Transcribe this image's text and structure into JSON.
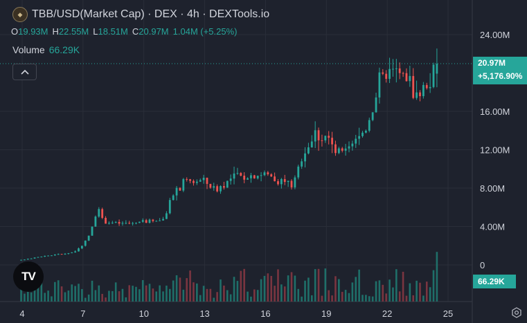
{
  "header": {
    "title": "TBB/USD(Market Cap) · DEX · 4h · DEXTools.io",
    "logo_icon": "tbb-token-icon"
  },
  "ohlc": {
    "o_label": "O",
    "o_value": "19.93M",
    "h_label": "H",
    "h_value": "22.55M",
    "l_label": "L",
    "l_value": "18.51M",
    "c_label": "C",
    "c_value": "20.97M",
    "change": "1.04M (+5.25%)"
  },
  "volume": {
    "label": "Volume",
    "value": "66.29K"
  },
  "collapse_icon": "chevron-up-icon",
  "badges": {
    "last_price": "20.97M",
    "last_change": "+5,176.90%",
    "volume": "66.29K"
  },
  "tradingview_logo": "TV",
  "colors": {
    "background": "#1e222d",
    "up": "#26a69a",
    "down": "#ef5350",
    "up_volume": "#1f6f69",
    "down_volume": "#7a3540",
    "grid": "#2a2e39",
    "text": "#d1d4dc"
  },
  "chart_data": {
    "type": "candlestick",
    "y_axis": {
      "range": [
        -1000000,
        25200000
      ],
      "tick_values": [
        0,
        4000000,
        8000000,
        12000000,
        16000000,
        24000000
      ],
      "tick_labels": [
        "0",
        "4.00M",
        "8.00M",
        "12.00M",
        "16.00M",
        "24.00M"
      ]
    },
    "x_axis": {
      "tick_labels": [
        "4",
        "7",
        "10",
        "13",
        "16",
        "19",
        "22",
        "25"
      ],
      "tick_positions_day": [
        4,
        7,
        10,
        13,
        16,
        19,
        22,
        25
      ],
      "day_range": [
        3.95,
        25.4
      ],
      "candle_interval_hours": 4
    },
    "last_value": 20970000,
    "grid": true,
    "anchors": [
      [
        3.95,
        500000
      ],
      [
        5.0,
        900000
      ],
      [
        6.5,
        1300000
      ],
      [
        7.0,
        2000000
      ],
      [
        7.4,
        3500000
      ],
      [
        7.7,
        6000000
      ],
      [
        8.0,
        4500000
      ],
      [
        9.0,
        4300000
      ],
      [
        10.0,
        4500000
      ],
      [
        11.0,
        4800000
      ],
      [
        11.4,
        7000000
      ],
      [
        12.0,
        8700000
      ],
      [
        13.0,
        8800000
      ],
      [
        13.5,
        7800000
      ],
      [
        14.5,
        9200000
      ],
      [
        16.0,
        9500000
      ],
      [
        17.0,
        8600000
      ],
      [
        17.4,
        8400000
      ],
      [
        17.8,
        11500000
      ],
      [
        18.5,
        13800000
      ],
      [
        19.0,
        13500000
      ],
      [
        19.5,
        11500000
      ],
      [
        20.0,
        11800000
      ],
      [
        20.5,
        13000000
      ],
      [
        21.0,
        14500000
      ],
      [
        21.6,
        19000000
      ],
      [
        22.0,
        20000000
      ],
      [
        22.5,
        20000000
      ],
      [
        23.0,
        19500000
      ],
      [
        23.5,
        17500000
      ],
      [
        24.0,
        19000000
      ],
      [
        24.5,
        20970000
      ]
    ],
    "volume_axis": {
      "visible_max": 70000
    }
  }
}
